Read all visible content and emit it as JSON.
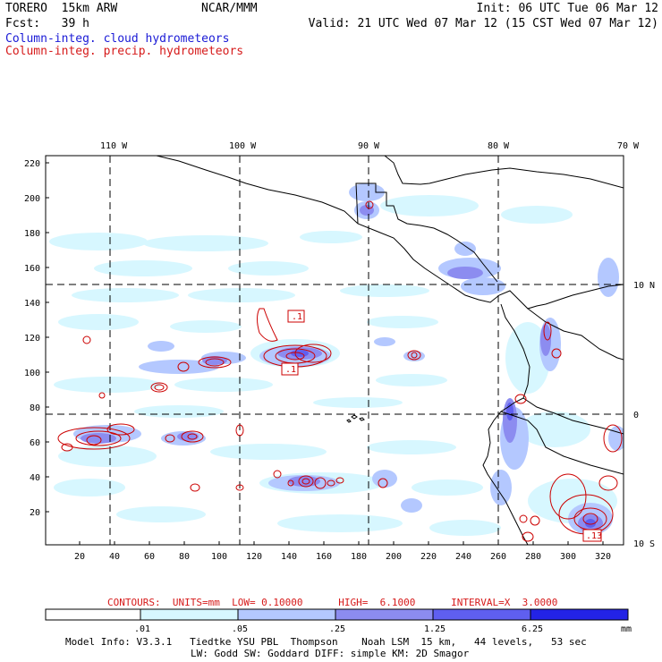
{
  "header": {
    "model": "TORERO  15km ARW",
    "center": "NCAR/MMM",
    "init": "Init: 06 UTC Tue 06 Mar 12",
    "fcst": "Fcst:   39 h",
    "valid": "Valid: 21 UTC Wed 07 Mar 12 (15 CST Wed 07 Mar 12)",
    "field_cloud": "Column-integ. cloud hydrometeors",
    "field_precip": "Column-integ. precip. hydrometeors"
  },
  "map": {
    "lon_labels": [
      "110 W",
      "100 W",
      "90 W",
      "80 W",
      "70 W"
    ],
    "lat_labels": [
      "10 N",
      "0",
      "10 S"
    ],
    "x_ticks": [
      "20",
      "40",
      "60",
      "80",
      "100",
      "120",
      "140",
      "160",
      "180",
      "200",
      "220",
      "240",
      "260",
      "280",
      "300",
      "320"
    ],
    "y_ticks": [
      "220",
      "200",
      "180",
      "160",
      "140",
      "120",
      "100",
      "80",
      "60",
      "40",
      "20"
    ],
    "box_labels": [
      ".1",
      ".1",
      ".13"
    ]
  },
  "contours": {
    "label": "CONTOURS:  UNITS=mm  LOW= 0.10000      HIGH=  6.1000      INTERVAL=X  3.0000",
    "color": "#cc0000"
  },
  "colorbar": {
    "ticks": [
      ".01",
      ".05",
      ".25",
      "1.25",
      "6.25"
    ],
    "unit": "mm",
    "colors": [
      "#ffffff",
      "#d7f7ff",
      "#b4c8ff",
      "#8c8cf0",
      "#5f5ff0",
      "#2323e6"
    ]
  },
  "footer": {
    "line1": "Model Info: V3.3.1   Tiedtke YSU PBL  Thompson    Noah LSM  15 km,   44 levels,   53 sec",
    "line2": "LW: Godd SW: Goddard DIFF: simple KM: 2D Smagor"
  }
}
